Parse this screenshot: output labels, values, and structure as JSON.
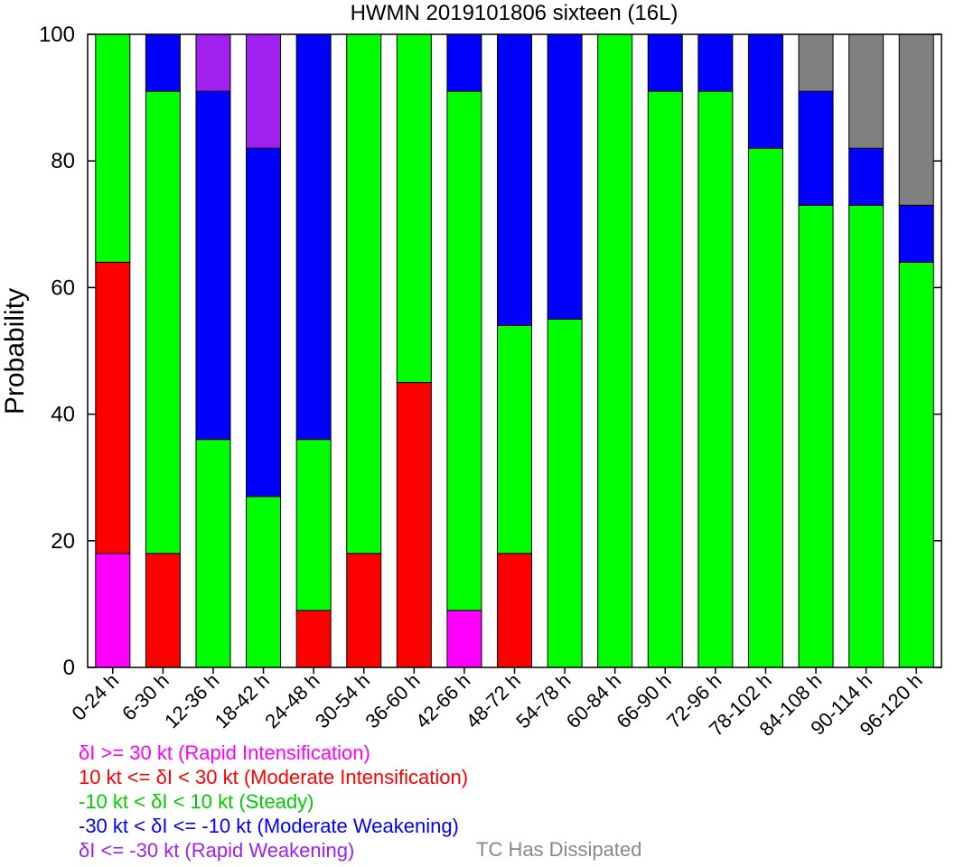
{
  "chart_data": {
    "type": "bar",
    "stacked": true,
    "title": "HWMN 2019101806 sixteen (16L)",
    "ylabel": "Probability",
    "ylim": [
      0,
      100
    ],
    "yticks": [
      "0",
      "20",
      "40",
      "60",
      "80",
      "100"
    ],
    "categories": [
      "0-24 h",
      "6-30 h",
      "12-36 h",
      "18-42 h",
      "24-48 h",
      "30-54 h",
      "36-60 h",
      "42-66 h",
      "48-72 h",
      "54-78 h",
      "60-84 h",
      "66-90 h",
      "72-96 h",
      "78-102 h",
      "84-108 h",
      "90-114 h",
      "96-120 h"
    ],
    "series": [
      {
        "color": "#ff00ff",
        "values": [
          18,
          0,
          0,
          0,
          0,
          0,
          0,
          9,
          0,
          0,
          0,
          0,
          0,
          0,
          0,
          0,
          0
        ]
      },
      {
        "color": "#ff0000",
        "values": [
          46,
          18,
          0,
          0,
          9,
          18,
          45,
          0,
          18,
          0,
          0,
          0,
          0,
          0,
          0,
          0,
          0
        ]
      },
      {
        "color": "#00ff00",
        "values": [
          36,
          73,
          36,
          27,
          27,
          82,
          55,
          82,
          36,
          55,
          100,
          91,
          91,
          82,
          73,
          73,
          64
        ]
      },
      {
        "color": "#0000ff",
        "values": [
          0,
          9,
          55,
          55,
          64,
          0,
          0,
          9,
          46,
          45,
          0,
          9,
          9,
          18,
          18,
          9,
          9
        ]
      },
      {
        "color": "#a020f0",
        "values": [
          0,
          0,
          9,
          18,
          0,
          0,
          0,
          0,
          0,
          0,
          0,
          0,
          0,
          0,
          0,
          0,
          0
        ]
      },
      {
        "color": "#808080",
        "values": [
          0,
          0,
          0,
          0,
          0,
          0,
          0,
          0,
          0,
          0,
          0,
          0,
          0,
          0,
          9,
          18,
          27
        ]
      }
    ],
    "legend": [
      {
        "label": "δI >= 30 kt (Rapid Intensification)",
        "color": "#ff00ff"
      },
      {
        "label": "10 kt <= δI < 30 kt (Moderate Intensification)",
        "color": "#ff0000"
      },
      {
        "label": "-10 kt < δI < 10 kt (Steady)",
        "color": "#00cc00"
      },
      {
        "label": "-30 kt < δI <= -10 kt (Moderate Weakening)",
        "color": "#0000ff"
      },
      {
        "label": "δI <= -30 kt (Rapid Weakening)",
        "color": "#a020f0"
      }
    ],
    "legend_extra": {
      "label": "TC Has Dissipated",
      "color": "#888888"
    }
  }
}
